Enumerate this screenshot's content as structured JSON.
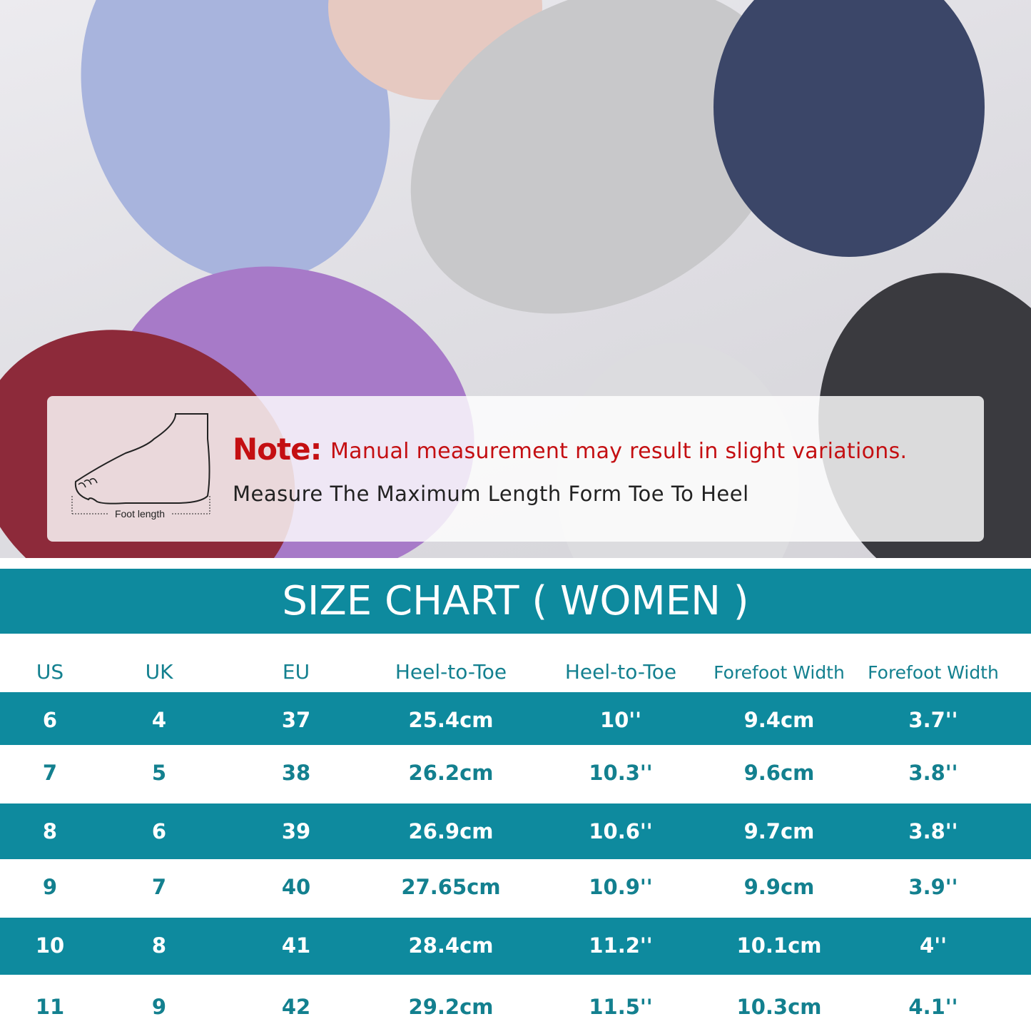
{
  "note": {
    "title": "Note:",
    "text": "Manual measurement may result in slight variations.",
    "subtext": "Measure The Maximum Length Form Toe To Heel",
    "foot_label": "Foot length"
  },
  "size_chart": {
    "title": "SIZE CHART ( WOMEN )",
    "columns": [
      "US",
      "UK",
      "EU",
      "Heel-to-Toe",
      "Heel-to-Toe",
      "Forefoot Width",
      "Forefoot Width"
    ],
    "rows": [
      [
        "6",
        "4",
        "37",
        "25.4cm",
        "10''",
        "9.4cm",
        "3.7''"
      ],
      [
        "7",
        "5",
        "38",
        "26.2cm",
        "10.3''",
        "9.6cm",
        "3.8''"
      ],
      [
        "8",
        "6",
        "39",
        "26.9cm",
        "10.6''",
        "9.7cm",
        "3.8''"
      ],
      [
        "9",
        "7",
        "40",
        "27.65cm",
        "10.9''",
        "9.9cm",
        "3.9''"
      ],
      [
        "10",
        "8",
        "41",
        "28.4cm",
        "11.2''",
        "10.1cm",
        "4''"
      ],
      [
        "11",
        "9",
        "42",
        "29.2cm",
        "11.5''",
        "10.3cm",
        "4.1''"
      ]
    ]
  },
  "colors": {
    "teal": "#0e8a9e",
    "note_red": "#c40f12",
    "header_text": "#13808f"
  }
}
